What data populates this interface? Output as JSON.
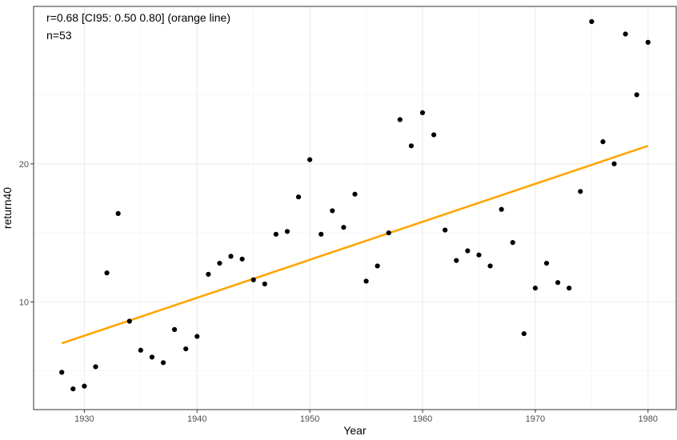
{
  "chart_data": {
    "type": "scatter",
    "xlabel": "Year",
    "ylabel": "return40",
    "annotations": [
      "r=0.68 [CI95: 0.50 0.80] (orange line)",
      "n=53"
    ],
    "xlim": [
      1925.5,
      1982.5
    ],
    "ylim": [
      2.2,
      31.4
    ],
    "x_ticks": [
      1930,
      1940,
      1950,
      1960,
      1970,
      1980
    ],
    "x_tick_labels": [
      "1930",
      "1940",
      "1950",
      "1960",
      "1970",
      "1980"
    ],
    "y_ticks": [
      10,
      20
    ],
    "y_tick_labels": [
      "10",
      "20"
    ],
    "grid": true,
    "points": [
      [
        1928,
        4.9
      ],
      [
        1929,
        3.7
      ],
      [
        1930,
        3.9
      ],
      [
        1931,
        5.3
      ],
      [
        1932,
        12.1
      ],
      [
        1933,
        16.4
      ],
      [
        1934,
        8.6
      ],
      [
        1935,
        6.5
      ],
      [
        1936,
        6.0
      ],
      [
        1937,
        5.6
      ],
      [
        1938,
        8.0
      ],
      [
        1939,
        6.6
      ],
      [
        1940,
        7.5
      ],
      [
        1941,
        12.0
      ],
      [
        1942,
        12.8
      ],
      [
        1943,
        13.3
      ],
      [
        1944,
        13.1
      ],
      [
        1945,
        11.6
      ],
      [
        1946,
        11.3
      ],
      [
        1947,
        14.9
      ],
      [
        1948,
        15.1
      ],
      [
        1949,
        17.6
      ],
      [
        1950,
        20.3
      ],
      [
        1951,
        14.9
      ],
      [
        1952,
        16.6
      ],
      [
        1953,
        15.4
      ],
      [
        1954,
        17.8
      ],
      [
        1955,
        11.5
      ],
      [
        1956,
        12.6
      ],
      [
        1957,
        15.0
      ],
      [
        1958,
        23.2
      ],
      [
        1959,
        21.3
      ],
      [
        1960,
        23.7
      ],
      [
        1961,
        22.1
      ],
      [
        1962,
        15.2
      ],
      [
        1963,
        13.0
      ],
      [
        1964,
        13.7
      ],
      [
        1965,
        13.4
      ],
      [
        1966,
        12.6
      ],
      [
        1967,
        16.7
      ],
      [
        1968,
        14.3
      ],
      [
        1969,
        7.7
      ],
      [
        1970,
        11.0
      ],
      [
        1971,
        12.8
      ],
      [
        1972,
        11.4
      ],
      [
        1973,
        11.0
      ],
      [
        1974,
        18.0
      ],
      [
        1975,
        30.3
      ],
      [
        1976,
        21.6
      ],
      [
        1977,
        20.0
      ],
      [
        1978,
        29.4
      ],
      [
        1979,
        25.0
      ],
      [
        1980,
        28.8
      ]
    ],
    "fit_line": {
      "x": [
        1928,
        1980
      ],
      "y": [
        7.0,
        21.3
      ],
      "color": "#FFA500"
    },
    "point_color": "#000000"
  }
}
